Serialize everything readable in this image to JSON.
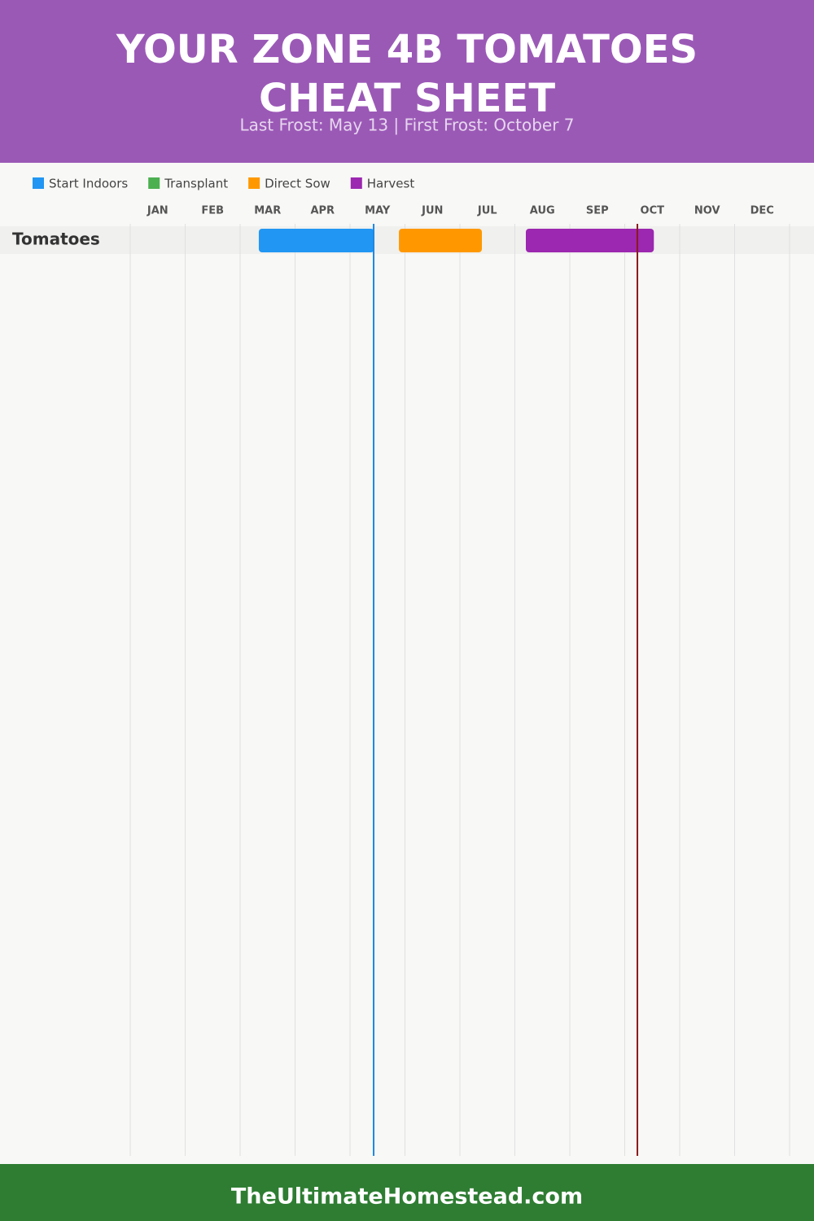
{
  "chart_data": {
    "type": "gantt",
    "title": [
      "YOUR ZONE 4B TOMATOES",
      "CHEAT SHEET"
    ],
    "subtitle": "Last Frost: May 13 | First Frost: October 7",
    "categories": [
      "JAN",
      "FEB",
      "MAR",
      "APR",
      "MAY",
      "JUN",
      "JUL",
      "AUG",
      "SEP",
      "OCT",
      "NOV",
      "DEC"
    ],
    "xlim": [
      0,
      12
    ],
    "xticks": [
      0,
      1,
      2,
      3,
      4,
      5,
      6,
      7,
      8,
      9,
      10,
      11,
      12
    ],
    "grid": true,
    "rows": [
      "Tomatoes"
    ],
    "series": [
      {
        "name": "Start Indoors",
        "color": "#2196f3",
        "start": [
          2.34
        ],
        "end": [
          4.44
        ]
      },
      {
        "name": "Transplant",
        "color": "#4caf50",
        "start": [
          null
        ],
        "end": [
          null
        ]
      },
      {
        "name": "Direct Sow",
        "color": "#ff9800",
        "start": [
          4.89
        ],
        "end": [
          6.4
        ]
      },
      {
        "name": "Harvest",
        "color": "#9c27b0",
        "start": [
          7.2
        ],
        "end": [
          9.53
        ]
      }
    ],
    "frost_lines": [
      {
        "value": 4.43,
        "color": "#1e88e5"
      },
      {
        "value": 9.23,
        "color": "#8b1a1a"
      }
    ]
  },
  "footer": "TheUltimateHomestead.com"
}
